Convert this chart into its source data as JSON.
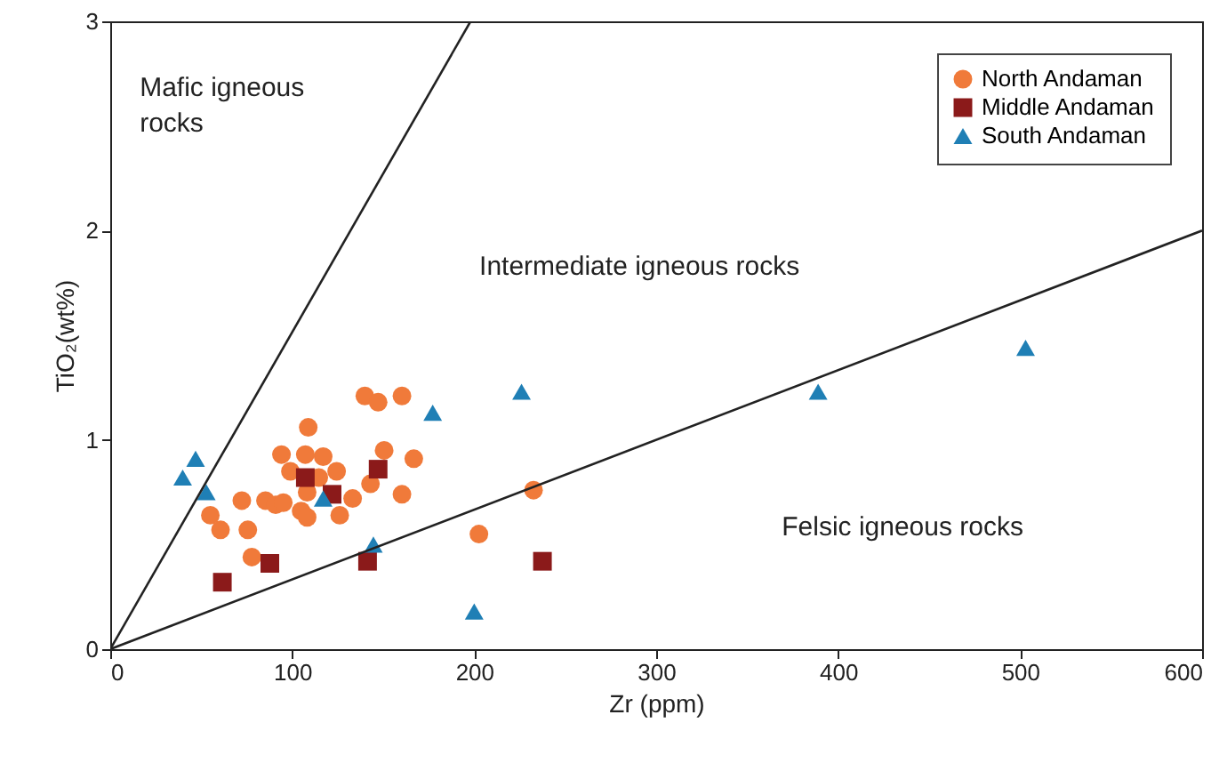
{
  "chart_data": {
    "type": "scatter",
    "xlabel": "Zr (ppm)",
    "ylabel": "TiO₂(wt%)",
    "xlim": [
      0,
      600
    ],
    "ylim": [
      0,
      3
    ],
    "xticks": [
      0,
      100,
      200,
      300,
      400,
      500,
      600
    ],
    "yticks": [
      0,
      1,
      2,
      3
    ],
    "grid": false,
    "legend": "top right",
    "series": [
      {
        "name": "North Andaman",
        "color": "#f07a3a",
        "marker": "circle",
        "x": [
          139.9,
          147.2,
          160.3,
          108.8,
          94.1,
          107.2,
          117,
          150.5,
          166.8,
          99,
          124.4,
          114.6,
          143,
          160.3,
          133.2,
          108.2,
          72.3,
          85.3,
          90.9,
          95.1,
          104.9,
          108.2,
          126.1,
          55,
          60.6,
          75.6,
          77.8,
          232.6,
          202.6
        ],
        "values": [
          1.21,
          1.18,
          1.21,
          1.06,
          0.93,
          0.93,
          0.92,
          0.95,
          0.91,
          0.85,
          0.85,
          0.82,
          0.79,
          0.74,
          0.72,
          0.75,
          0.71,
          0.71,
          0.69,
          0.7,
          0.66,
          0.63,
          0.64,
          0.64,
          0.57,
          0.57,
          0.44,
          0.76,
          0.55
        ]
      },
      {
        "name": "Middle Andaman",
        "color": "#8b1a1a",
        "marker": "square",
        "x": [
          107.2,
          121.9,
          147.2,
          141.4,
          87.7,
          61.6,
          237.5
        ],
        "values": [
          0.82,
          0.74,
          0.86,
          0.42,
          0.41,
          0.32,
          0.42
        ]
      },
      {
        "name": "South Andaman",
        "color": "#1f7fb5",
        "marker": "triangle",
        "x": [
          46.9,
          39.8,
          52.8,
          117,
          144.6,
          177.2,
          226,
          200,
          389,
          503
        ],
        "values": [
          0.91,
          0.82,
          0.75,
          0.72,
          0.5,
          1.13,
          1.23,
          0.18,
          1.23,
          1.44
        ]
      },
      {
        "type": "line",
        "color": "#222222",
        "x": [
          0,
          198
        ],
        "values": [
          0,
          3
        ]
      },
      {
        "type": "line",
        "color": "#222222",
        "x": [
          0,
          600
        ],
        "values": [
          0,
          2
        ]
      }
    ],
    "annotations": [
      "Mafic igneous\nrocks",
      "Intermediate igneous rocks",
      "Felsic igneous rocks"
    ]
  }
}
